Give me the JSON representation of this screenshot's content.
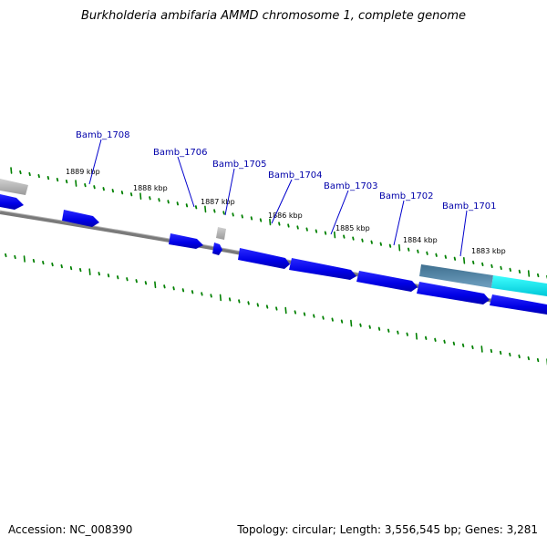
{
  "title": "Burkholderia ambifaria AMMD chromosome 1, complete genome",
  "footer": {
    "accession": "Accession: NC_008390",
    "summary": "Topology: circular; Length: 3,556,545 bp; Genes: 3,281"
  },
  "colors": {
    "background": "#ffffff",
    "backbone": "#7a7a7a",
    "gene_forward": "#0000ee",
    "gene_reverse": "#0000ee",
    "pseudo_gene": "#b4b4b4",
    "selected_gene": "#4a7fa0",
    "rna_feature": "#00e6e6",
    "tick": "#008000",
    "label": "#0000aa",
    "tick_label": "#000000"
  },
  "scale_labels": [
    "1889 kbp",
    "1888 kbp",
    "1887 kbp",
    "1886 kbp",
    "1885 kbp",
    "1884 kbp",
    "1883 kbp"
  ],
  "gene_labels": [
    "Bamb_1708",
    "Bamb_1706",
    "Bamb_1705",
    "Bamb_1704",
    "Bamb_1703",
    "Bamb_1702",
    "Bamb_1701"
  ]
}
